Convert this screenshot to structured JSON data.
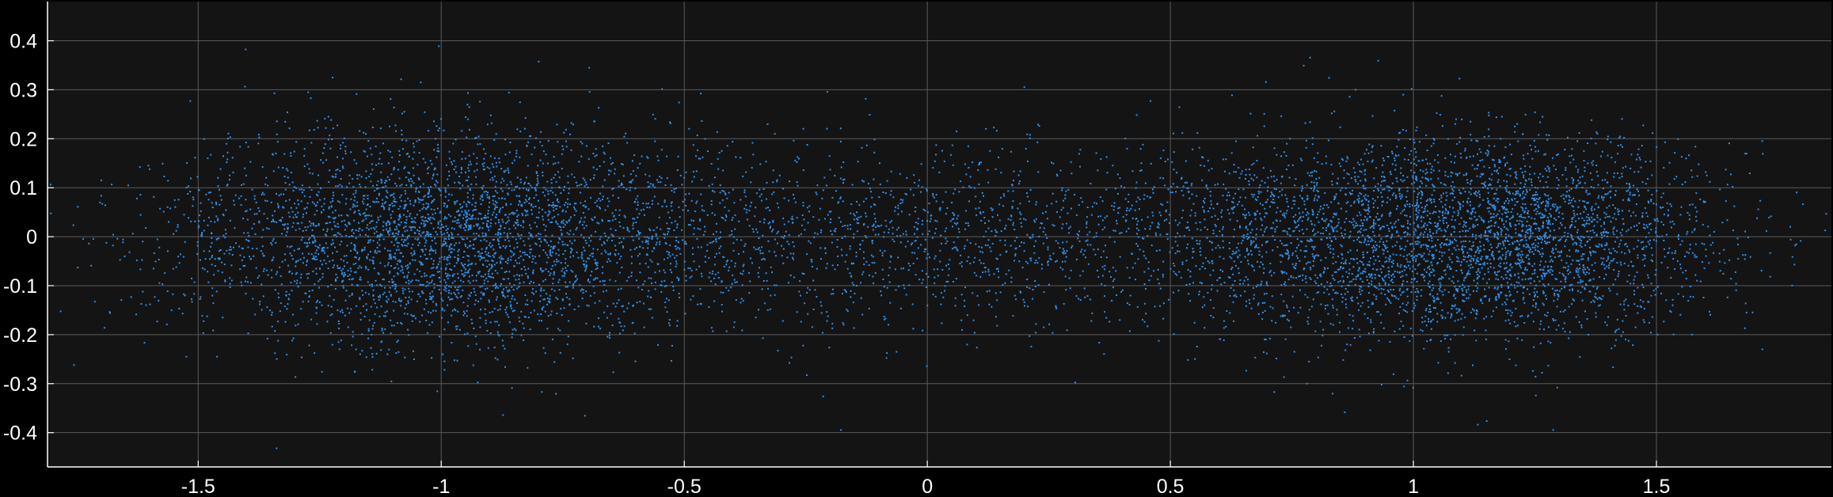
{
  "chart_data": {
    "type": "scatter",
    "title": "",
    "xlabel": "",
    "ylabel": "",
    "xlim": [
      -1.81,
      1.86
    ],
    "ylim": [
      -0.47,
      0.48
    ],
    "grid": true,
    "x_ticks": [
      -1.5,
      -1,
      -0.5,
      0,
      0.5,
      1,
      1.5
    ],
    "x_tick_labels": [
      "-1.5",
      "-1",
      "-0.5",
      "0",
      "0.5",
      "1",
      "1.5"
    ],
    "y_ticks": [
      0.4,
      0.3,
      0.2,
      0.1,
      0,
      -0.1,
      -0.2,
      -0.3,
      -0.4
    ],
    "y_tick_labels": [
      "0.4",
      "0.3",
      "0.2",
      "0.1",
      "0",
      "-0.1",
      "-0.2",
      "-0.3",
      "-0.4"
    ],
    "series": [
      {
        "color": "#2f8fe8",
        "point_count": 9000,
        "clusters": [
          {
            "center": [
              -1.0,
              0.0
            ],
            "x_spread": 0.28,
            "y_spread": 0.11,
            "weight": 0.36
          },
          {
            "center": [
              1.0,
              0.0
            ],
            "x_spread": 0.25,
            "y_spread": 0.105,
            "weight": 0.3
          },
          {
            "center": [
              1.3,
              0.0
            ],
            "x_spread": 0.18,
            "y_spread": 0.1,
            "weight": 0.12
          },
          {
            "center": [
              0.0,
              0.0
            ],
            "x_spread": 0.55,
            "y_spread": 0.09,
            "weight": 0.22
          }
        ]
      }
    ]
  },
  "colors": {
    "figure_background": "#000000",
    "plot_background": "#141414",
    "grid": "#5a5a5a",
    "axes": "#ffffff",
    "tick_label": "#ffffff",
    "marker": "#2f8fe8"
  }
}
